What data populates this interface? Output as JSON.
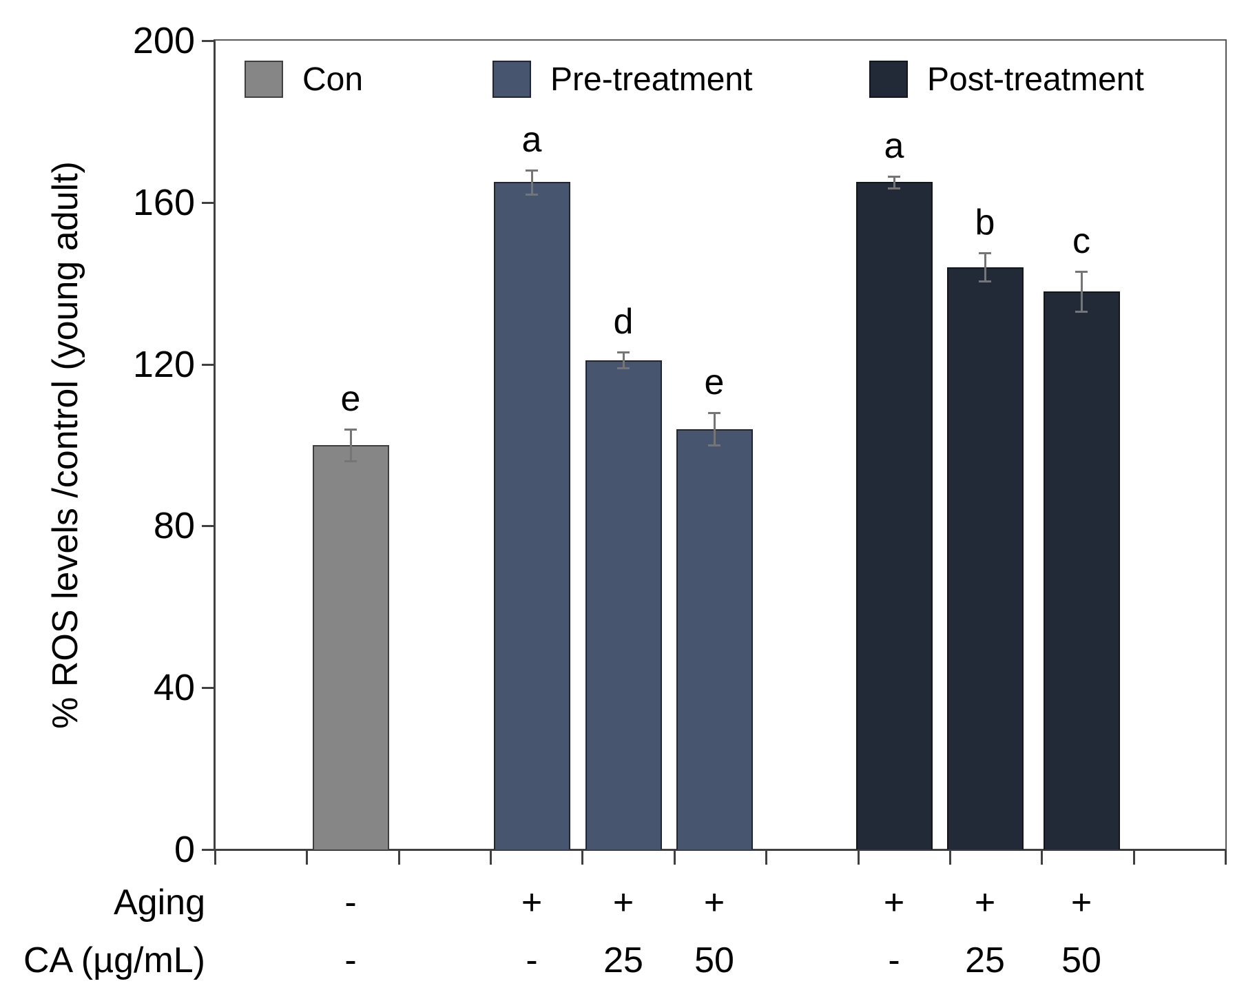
{
  "chart_data": {
    "type": "bar",
    "title": "",
    "xlabel": "",
    "ylabel": "% ROS levels /control (young adult)",
    "ylim": [
      0,
      200
    ],
    "yticks": [
      0,
      40,
      80,
      120,
      160,
      200
    ],
    "grid": "off",
    "legend_position": "top-inside",
    "legend": [
      {
        "label": "Con",
        "color": "#868686",
        "border": "#3f3f3f"
      },
      {
        "label": "Pre-treatment",
        "color": "#47566e",
        "border": "#20262f"
      },
      {
        "label": "Post-treatment",
        "color": "#232a37",
        "border": "#12151c"
      }
    ],
    "bars": [
      {
        "group": "Con",
        "value": 100,
        "error": 4,
        "letter": "e",
        "aging": "-",
        "ca": "-"
      },
      {
        "group": "Pre-treatment",
        "value": 165,
        "error": 3,
        "letter": "a",
        "aging": "+",
        "ca": "-"
      },
      {
        "group": "Pre-treatment",
        "value": 121,
        "error": 2,
        "letter": "d",
        "aging": "+",
        "ca": "25"
      },
      {
        "group": "Pre-treatment",
        "value": 104,
        "error": 4,
        "letter": "e",
        "aging": "+",
        "ca": "50"
      },
      {
        "group": "Post-treatment",
        "value": 165,
        "error": 1.5,
        "letter": "a",
        "aging": "+",
        "ca": "-"
      },
      {
        "group": "Post-treatment",
        "value": 144,
        "error": 3.5,
        "letter": "b",
        "aging": "+",
        "ca": "25"
      },
      {
        "group": "Post-treatment",
        "value": 138,
        "error": 5,
        "letter": "c",
        "aging": "+",
        "ca": "50"
      }
    ],
    "x_annotation_rows": [
      {
        "header": "Aging",
        "values": [
          "-",
          "+",
          "+",
          "+",
          "+",
          "+",
          "+"
        ]
      },
      {
        "header": "CA (µg/mL)",
        "values": [
          "-",
          "-",
          "25",
          "50",
          "-",
          "25",
          "50"
        ]
      }
    ]
  }
}
